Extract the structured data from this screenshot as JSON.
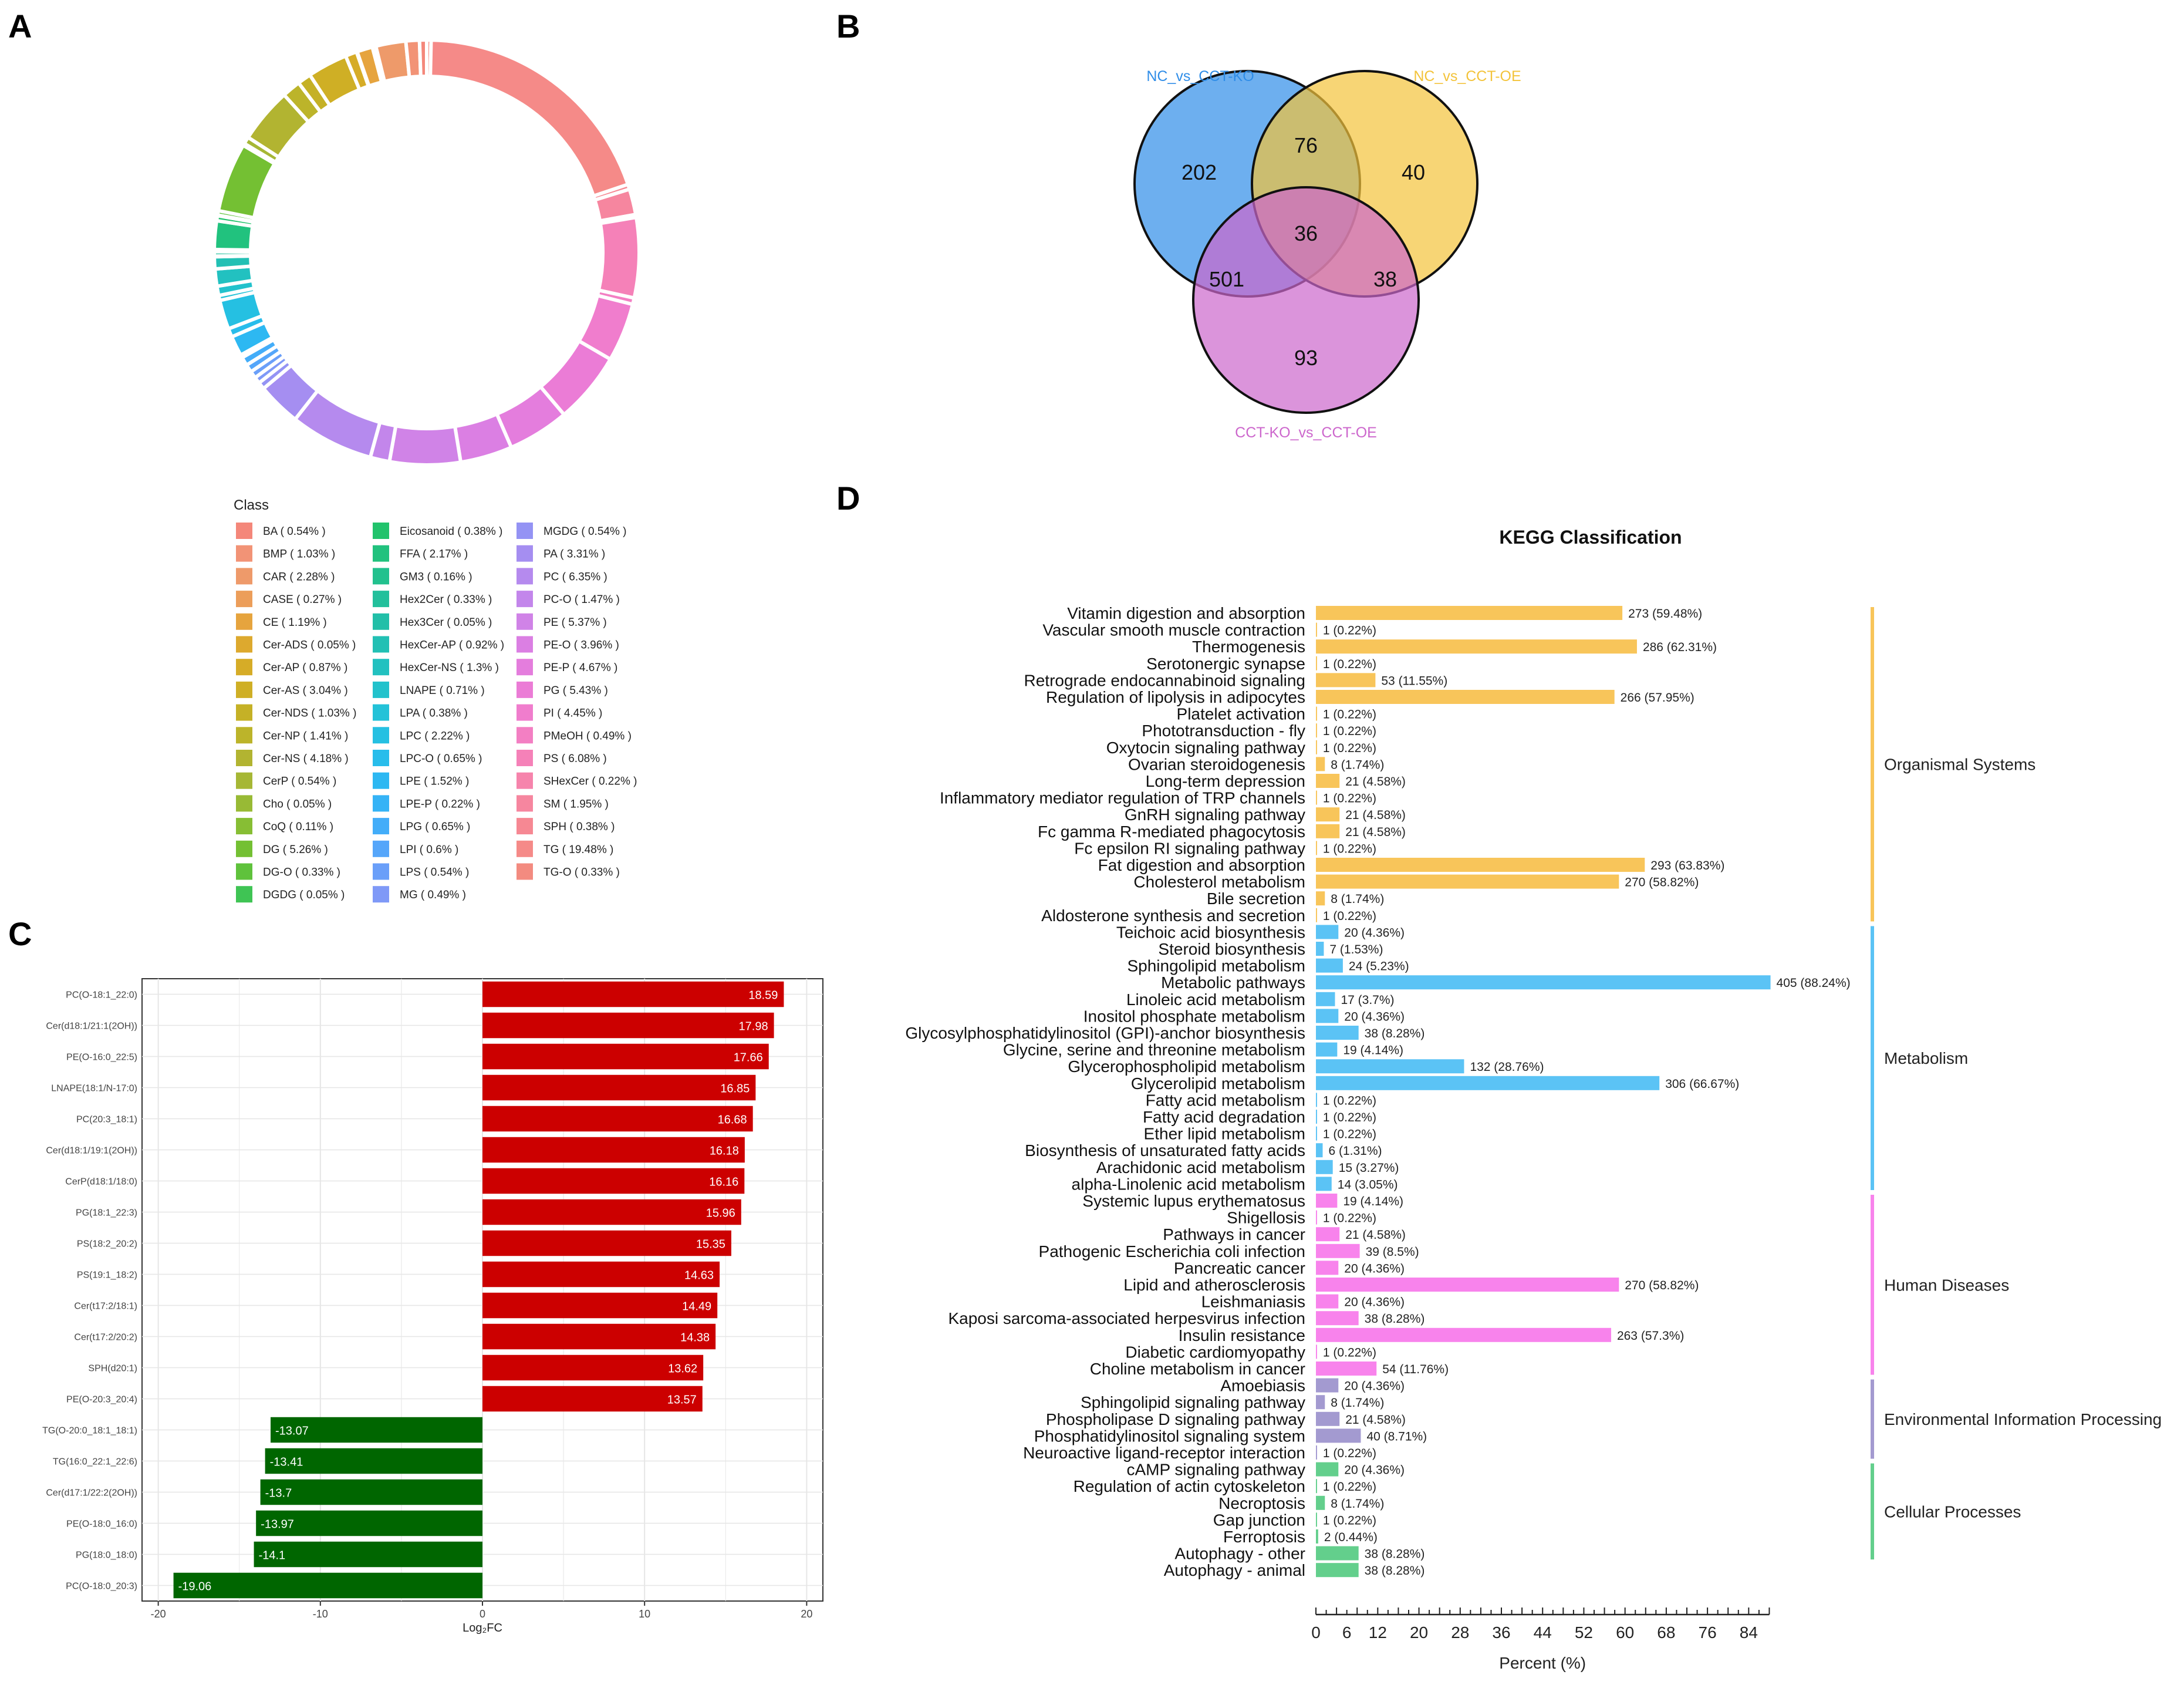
{
  "panels": {
    "a": "A",
    "b": "B",
    "c": "C",
    "d": "D"
  },
  "chart_data": [
    {
      "type": "pie",
      "panel": "A",
      "legend_title": "Class",
      "categories": [
        "BA ( 0.54% )",
        "BMP ( 1.03% )",
        "CAR ( 2.28% )",
        "CASE ( 0.27% )",
        "CE ( 1.19% )",
        "Cer-ADS ( 0.05% )",
        "Cer-AP ( 0.87% )",
        "Cer-AS ( 3.04% )",
        "Cer-NDS ( 1.03% )",
        "Cer-NP ( 1.41% )",
        "Cer-NS ( 4.18% )",
        "CerP ( 0.54% )",
        "Cho ( 0.05% )",
        "CoQ ( 0.11% )",
        "DG ( 5.26% )",
        "DG-O ( 0.33% )",
        "DGDG ( 0.05% )",
        "Eicosanoid ( 0.38% )",
        "FFA ( 2.17% )",
        "GM3 ( 0.16% )",
        "Hex2Cer ( 0.33% )",
        "Hex3Cer ( 0.05% )",
        "HexCer-AP ( 0.92% )",
        "HexCer-NS ( 1.3% )",
        "LNAPE ( 0.71% )",
        "LPA ( 0.38% )",
        "LPC ( 2.22% )",
        "LPC-O ( 0.65% )",
        "LPE ( 1.52% )",
        "LPE-P ( 0.22% )",
        "LPG ( 0.65% )",
        "LPI ( 0.6% )",
        "LPS ( 0.54% )",
        "MG ( 0.49% )",
        "MGDG ( 0.54% )",
        "PA ( 3.31% )",
        "PC ( 6.35% )",
        "PC-O ( 1.47% )",
        "PE ( 5.37% )",
        "PE-O ( 3.96% )",
        "PE-P ( 4.67% )",
        "PG ( 5.43% )",
        "PI ( 4.45% )",
        "PMeOH ( 0.49% )",
        "PS ( 6.08% )",
        "SHexCer ( 0.22% )",
        "SM ( 1.95% )",
        "SPH ( 0.38% )",
        "TG ( 19.48% )",
        "TG-O ( 0.33% )"
      ],
      "values": [
        0.54,
        1.03,
        2.28,
        0.27,
        1.19,
        0.05,
        0.87,
        3.04,
        1.03,
        1.41,
        4.18,
        0.54,
        0.05,
        0.11,
        5.26,
        0.33,
        0.05,
        0.38,
        2.17,
        0.16,
        0.33,
        0.05,
        0.92,
        1.3,
        0.71,
        0.38,
        2.22,
        0.65,
        1.52,
        0.22,
        0.65,
        0.6,
        0.54,
        0.49,
        0.54,
        3.31,
        6.35,
        1.47,
        5.37,
        3.96,
        4.67,
        5.43,
        4.45,
        0.49,
        6.08,
        0.22,
        1.95,
        0.38,
        19.48,
        0.33
      ],
      "colors": [
        "#F4877A",
        "#F29376",
        "#EE9A6A",
        "#EC9E5A",
        "#E6A43E",
        "#DDA92E",
        "#D6AC27",
        "#CFAF25",
        "#C5B126",
        "#BCB42A",
        "#B2B431",
        "#A6B735",
        "#98BA35",
        "#87BE34",
        "#74C033",
        "#5FC23C",
        "#3FC454",
        "#22C36C",
        "#21C27E",
        "#22C18E",
        "#22C09C",
        "#22BFA8",
        "#22C0B4",
        "#22C1C0",
        "#22C2CC",
        "#23C2D8",
        "#25C0E2",
        "#28BDEB",
        "#2DB8F2",
        "#35B3F6",
        "#43ADF9",
        "#55A6FA",
        "#6A9FF9",
        "#7F99F7",
        "#9493F4",
        "#A58EF1",
        "#B58AEE",
        "#C386EB",
        "#D083E7",
        "#DB7FE3",
        "#E47DDD",
        "#EB7CD6",
        "#F07DCD",
        "#F37FC3",
        "#F581B8",
        "#F684AC",
        "#F6869F",
        "#F68893",
        "#F58A88",
        "#F38B80"
      ]
    },
    {
      "type": "venn",
      "panel": "B",
      "sets": [
        "NC_vs_CCT-KO",
        "NC_vs_CCT-OE",
        "CCT-KO_vs_CCT-OE"
      ],
      "set_colors": [
        "#2F8DE8",
        "#F3C33A",
        "#CC66CC"
      ],
      "regions": {
        "only_ko": "202",
        "ko_oe": "76",
        "only_oe": "40",
        "all_three": "36",
        "ko_ccto": "501",
        "oe_ccto": "38",
        "only_ccto": "93"
      }
    },
    {
      "type": "bar",
      "panel": "C",
      "orientation": "horizontal",
      "xlabel": "Log₂FC",
      "xlim": [
        -21,
        21
      ],
      "xticks": [
        -20,
        -10,
        0,
        10,
        20
      ],
      "categories": [
        "PC(O-18:1_22:0)",
        "Cer(d18:1/21:1(2OH))",
        "PE(O-16:0_22:5)",
        "LNAPE(18:1/N-17:0)",
        "PC(20:3_18:1)",
        "Cer(d18:1/19:1(2OH))",
        "CerP(d18:1/18:0)",
        "PG(18:1_22:3)",
        "PS(18:2_20:2)",
        "PS(19:1_18:2)",
        "Cer(t17:2/18:1)",
        "Cer(t17:2/20:2)",
        "SPH(d20:1)",
        "PE(O-20:3_20:4)",
        "TG(O-20:0_18:1_18:1)",
        "TG(16:0_22:1_22:6)",
        "Cer(d17:1/22:2(2OH))",
        "PE(O-18:0_16:0)",
        "PG(18:0_18:0)",
        "PC(O-18:0_20:3)"
      ],
      "values": [
        18.59,
        17.98,
        17.66,
        16.85,
        16.68,
        16.18,
        16.16,
        15.96,
        15.35,
        14.63,
        14.49,
        14.38,
        13.62,
        13.57,
        -13.07,
        -13.41,
        -13.7,
        -13.97,
        -14.1,
        -19.06
      ],
      "colors": {
        "up": "#CC0000",
        "down": "#006600"
      }
    },
    {
      "type": "bar",
      "panel": "D",
      "orientation": "horizontal",
      "title": "KEGG Classification",
      "xlabel": "Percent (%)",
      "xlim": [
        0,
        90
      ],
      "xticks": [
        0,
        6,
        12,
        20,
        28,
        36,
        44,
        52,
        60,
        68,
        76,
        84
      ],
      "groups": [
        {
          "name": "Organismal Systems",
          "color": "#F8C55A",
          "start": 0,
          "end": 18
        },
        {
          "name": "Metabolism",
          "color": "#5BC3F5",
          "start": 19,
          "end": 34
        },
        {
          "name": "Human Diseases",
          "color": "#F883EC",
          "start": 35,
          "end": 45
        },
        {
          "name": "Environmental Information Processing",
          "color": "#A39AD0",
          "start": 46,
          "end": 50
        },
        {
          "name": "Cellular Processes",
          "color": "#63CF8C",
          "start": 51,
          "end": 56
        }
      ],
      "categories": [
        "Vitamin digestion and absorption",
        "Vascular smooth muscle contraction",
        "Thermogenesis",
        "Serotonergic synapse",
        "Retrograde endocannabinoid signaling",
        "Regulation of lipolysis in adipocytes",
        "Platelet activation",
        "Phototransduction - fly",
        "Oxytocin signaling pathway",
        "Ovarian steroidogenesis",
        "Long-term depression",
        "Inflammatory mediator regulation of TRP channels",
        "GnRH signaling pathway",
        "Fc gamma R-mediated phagocytosis",
        "Fc epsilon RI signaling pathway",
        "Fat digestion and absorption",
        "Cholesterol metabolism",
        "Bile secretion",
        "Aldosterone synthesis and secretion",
        "Teichoic acid biosynthesis",
        "Steroid biosynthesis",
        "Sphingolipid metabolism",
        "Metabolic pathways",
        "Linoleic acid metabolism",
        "Inositol phosphate metabolism",
        "Glycosylphosphatidylinositol (GPI)-anchor biosynthesis",
        "Glycine, serine and threonine metabolism",
        "Glycerophospholipid metabolism",
        "Glycerolipid metabolism",
        "Fatty acid metabolism",
        "Fatty acid degradation",
        "Ether lipid metabolism",
        "Biosynthesis of unsaturated fatty acids",
        "Arachidonic acid metabolism",
        "alpha-Linolenic acid metabolism",
        "Systemic lupus erythematosus",
        "Shigellosis",
        "Pathways in cancer",
        "Pathogenic Escherichia coli infection",
        "Pancreatic cancer",
        "Lipid and atherosclerosis",
        "Leishmaniasis",
        "Kaposi sarcoma-associated herpesvirus infection",
        "Insulin resistance",
        "Diabetic cardiomyopathy",
        "Choline metabolism in cancer",
        "Amoebiasis",
        "Sphingolipid signaling pathway",
        "Phospholipase D signaling pathway",
        "Phosphatidylinositol signaling system",
        "Neuroactive ligand-receptor interaction",
        "cAMP signaling pathway",
        "Regulation of actin cytoskeleton",
        "Necroptosis",
        "Gap junction",
        "Ferroptosis",
        "Autophagy - other",
        "Autophagy - animal"
      ],
      "values": [
        59.48,
        0.22,
        62.31,
        0.22,
        11.55,
        57.95,
        0.22,
        0.22,
        0.22,
        1.74,
        4.58,
        0.22,
        4.58,
        4.58,
        0.22,
        63.83,
        58.82,
        1.74,
        0.22,
        4.36,
        1.53,
        5.23,
        88.24,
        3.7,
        4.36,
        8.28,
        4.14,
        28.76,
        66.67,
        0.22,
        0.22,
        0.22,
        1.31,
        3.27,
        3.05,
        4.14,
        0.22,
        4.58,
        8.5,
        4.36,
        58.82,
        4.36,
        8.28,
        57.3,
        0.22,
        11.76,
        4.36,
        1.74,
        4.58,
        8.71,
        0.22,
        4.36,
        0.22,
        1.74,
        0.22,
        0.44,
        8.28,
        8.28
      ],
      "labels": [
        "273 (59.48%)",
        "1 (0.22%)",
        "286 (62.31%)",
        "1 (0.22%)",
        "53 (11.55%)",
        "266 (57.95%)",
        "1 (0.22%)",
        "1 (0.22%)",
        "1 (0.22%)",
        "8 (1.74%)",
        "21 (4.58%)",
        "1 (0.22%)",
        "21 (4.58%)",
        "21 (4.58%)",
        "1 (0.22%)",
        "293 (63.83%)",
        "270 (58.82%)",
        "8 (1.74%)",
        "1 (0.22%)",
        "20 (4.36%)",
        "7 (1.53%)",
        "24 (5.23%)",
        "405 (88.24%)",
        "17 (3.7%)",
        "20 (4.36%)",
        "38 (8.28%)",
        "19 (4.14%)",
        "132 (28.76%)",
        "306 (66.67%)",
        "1 (0.22%)",
        "1 (0.22%)",
        "1 (0.22%)",
        "6 (1.31%)",
        "15 (3.27%)",
        "14 (3.05%)",
        "19 (4.14%)",
        "1 (0.22%)",
        "21 (4.58%)",
        "39 (8.5%)",
        "20 (4.36%)",
        "270 (58.82%)",
        "20 (4.36%)",
        "38 (8.28%)",
        "263 (57.3%)",
        "1 (0.22%)",
        "54 (11.76%)",
        "20 (4.36%)",
        "8 (1.74%)",
        "21 (4.58%)",
        "40 (8.71%)",
        "1 (0.22%)",
        "20 (4.36%)",
        "1 (0.22%)",
        "8 (1.74%)",
        "1 (0.22%)",
        "2 (0.44%)",
        "38 (8.28%)",
        "38 (8.28%)"
      ]
    }
  ]
}
